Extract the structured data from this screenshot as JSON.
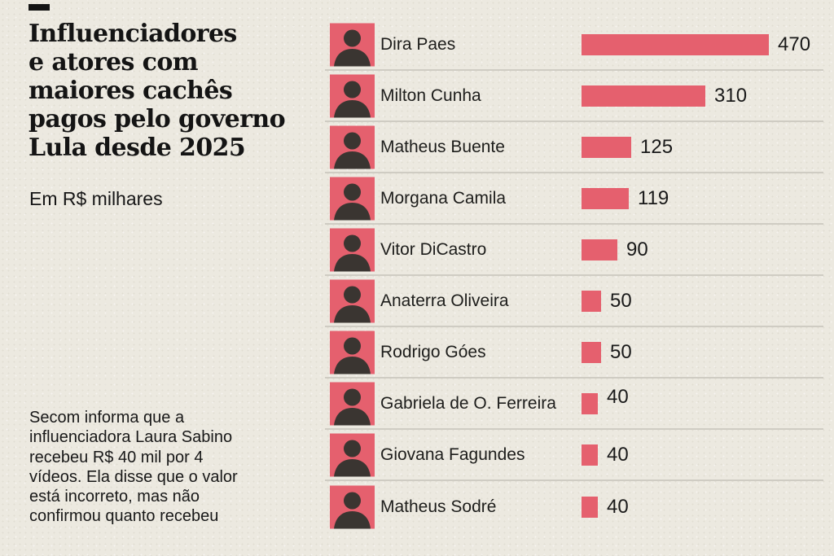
{
  "colors": {
    "background": "#ece9e0",
    "accent": "#e5606e",
    "separator": "#cfccc3",
    "ink": "#191919"
  },
  "header": {
    "title_display": "Influenciadores\ne atores com\nmaiores cachês\npagos pelo governo\nLula desde 2025",
    "subtitle": "Em R$ milhares"
  },
  "footer": {
    "note_display": "Secom informa que a\ninfluenciadora Laura Sabino\nrecebeu R$ 40 mil por 4\nvídeos. Ela disse que o valor\nestá incorreto, mas não\nconfirmou quanto recebeu"
  },
  "rows": [
    {
      "name": "Dira Paes",
      "value": 470,
      "label": "470"
    },
    {
      "name": "Milton Cunha",
      "value": 310,
      "label": "310"
    },
    {
      "name": "Matheus Buente",
      "value": 125,
      "label": "125"
    },
    {
      "name": "Morgana Camila",
      "value": 119,
      "label": "119"
    },
    {
      "name": "Vitor DiCastro",
      "value": 90,
      "label": "90"
    },
    {
      "name": "Anaterra Oliveira",
      "value": 50,
      "label": "50"
    },
    {
      "name": "Rodrigo Góes",
      "value": 50,
      "label": "50"
    },
    {
      "name": "Gabriela de O. Ferreira",
      "value": 40,
      "label": "40"
    },
    {
      "name": "Giovana Fagundes",
      "value": 40,
      "label": "40"
    },
    {
      "name": "Matheus Sodré",
      "value": 40,
      "label": "40"
    }
  ],
  "chart_data": {
    "type": "bar",
    "orientation": "horizontal",
    "title": "Influenciadores e atores com maiores cachês pagos pelo governo Lula desde 2025",
    "subtitle": "Em R$ milhares",
    "unit": "R$ milhares",
    "categories": [
      "Dira Paes",
      "Milton Cunha",
      "Matheus Buente",
      "Morgana Camila",
      "Vitor DiCastro",
      "Anaterra Oliveira",
      "Rodrigo Góes",
      "Gabriela de O. Ferreira",
      "Giovana Fagundes",
      "Matheus Sodré"
    ],
    "values": [
      470,
      310,
      125,
      119,
      90,
      50,
      50,
      40,
      40,
      40
    ],
    "xlim": [
      0,
      470
    ],
    "bar_color": "#e5606e",
    "grid": false,
    "legend": false,
    "data_labels": true,
    "footnote": "Secom informa que a influenciadora Laura Sabino recebeu R$ 40 mil por 4 vídeos. Ela disse que o valor está incorreto, mas não confirmou quanto recebeu"
  }
}
